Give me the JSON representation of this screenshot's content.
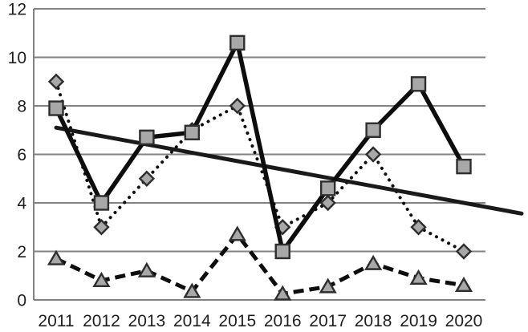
{
  "chart_data": {
    "type": "line",
    "title": "",
    "xlabel": "",
    "ylabel": "",
    "categories": [
      "2011",
      "2012",
      "2013",
      "2014",
      "2015",
      "2016",
      "2017",
      "2018",
      "2019",
      "2020"
    ],
    "series": [
      {
        "name": "solid-line-square-markers",
        "marker": "square",
        "line_style": "solid",
        "values": [
          7.9,
          4.0,
          6.7,
          6.9,
          10.6,
          2.0,
          4.6,
          7.0,
          8.9,
          5.5
        ]
      },
      {
        "name": "dotted-line-diamond-markers",
        "marker": "diamond",
        "line_style": "dotted",
        "values": [
          9.0,
          3.0,
          5.0,
          7.0,
          8.0,
          3.0,
          4.0,
          6.0,
          3.0,
          2.0
        ]
      },
      {
        "name": "dashed-line-triangle-markers",
        "marker": "triangle",
        "line_style": "dashed",
        "values": [
          1.7,
          0.8,
          1.2,
          0.35,
          2.7,
          0.25,
          0.55,
          1.5,
          0.9,
          0.6
        ]
      },
      {
        "name": "linear-trend-line",
        "marker": "none",
        "line_style": "straight-trend",
        "trend": true,
        "start_value": 7.1,
        "end_value": 4.0,
        "extends_past_plot": true
      }
    ],
    "y_ticks": [
      0,
      2,
      4,
      6,
      8,
      10,
      12
    ],
    "ylim": [
      0,
      12
    ],
    "grid": true,
    "legend_position": "none",
    "colors": {
      "line": "#0d0d0d",
      "trend_line": "#1a1a1a",
      "marker_fill": "#a8a8a8",
      "marker_stroke": "#2e2e2e",
      "gridline": "#828282",
      "axis": "#828282",
      "label_text": "#1f1f1f",
      "background": "#ffffff"
    }
  }
}
